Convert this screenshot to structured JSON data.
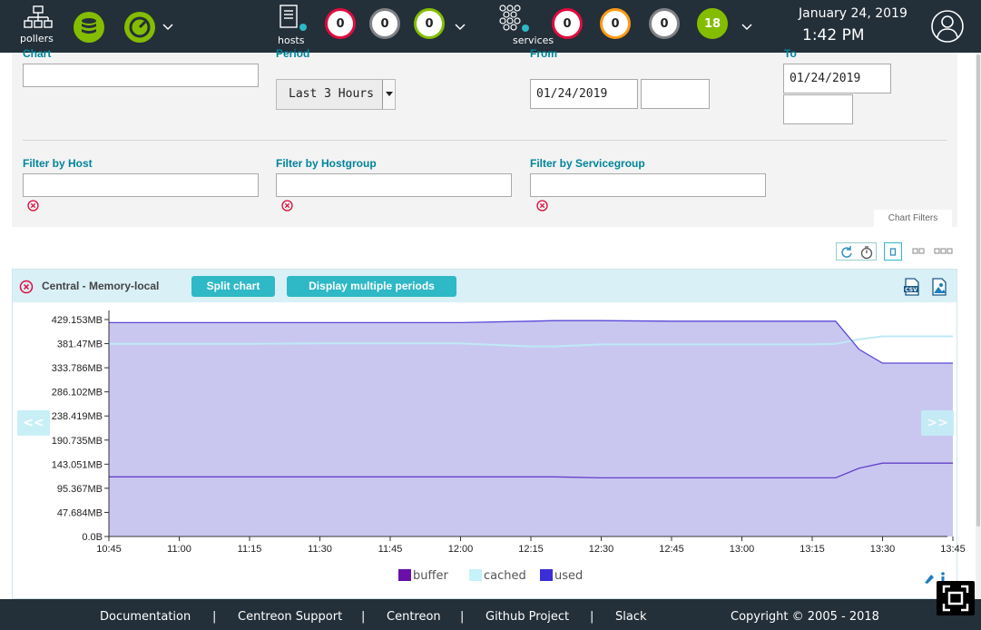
{
  "topbar": {
    "pollers_label": "pollers",
    "hosts_label": "hosts",
    "services_label": "services",
    "hosts_counts": [
      "0",
      "0",
      "0"
    ],
    "services_counts": [
      "0",
      "0",
      "0",
      "18"
    ],
    "date": "January 24, 2019",
    "time": "1:42 PM",
    "colors": {
      "critical": "#e00b3d",
      "unknown": "#818285",
      "ok": "#84bd00",
      "warning": "#ff9a13"
    }
  },
  "filters": {
    "chart_label": "Chart",
    "chart_value": "",
    "period_label": "Period",
    "period_value": "Last 3 Hours",
    "from_label": "From",
    "from_date": "01/24/2019",
    "from_time": "",
    "to_label": "To",
    "to_date": "01/24/2019",
    "to_time": "",
    "host_label": "Filter by Host",
    "host_value": "",
    "hostgroup_label": "Filter by Hostgroup",
    "hostgroup_value": "",
    "servicegroup_label": "Filter by Servicegroup",
    "servicegroup_value": "",
    "chart_filters_tab": "Chart Filters"
  },
  "chart_panel": {
    "title": "Central - Memory-local",
    "split_label": "Split chart",
    "multi_label": "Display multiple periods",
    "prev_label": "<<",
    "next_label": ">>"
  },
  "chart_data": {
    "type": "area",
    "x_ticks": [
      "10:45",
      "11:00",
      "11:15",
      "11:30",
      "11:45",
      "12:00",
      "12:15",
      "12:30",
      "12:45",
      "13:00",
      "13:15",
      "13:30",
      "13:45"
    ],
    "y_ticks": [
      "0.0B",
      "47.684MB",
      "95.367MB",
      "143.051MB",
      "190.735MB",
      "238.419MB",
      "286.102MB",
      "333.786MB",
      "381.47MB",
      "429.153MB"
    ],
    "ylim_mb": [
      0,
      429.153
    ],
    "series": [
      {
        "name": "used",
        "color": "#3a2fd6",
        "x": [
          "10:45",
          "11:00",
          "11:15",
          "11:30",
          "11:45",
          "12:00",
          "12:15",
          "12:20",
          "12:30",
          "12:45",
          "13:00",
          "13:15",
          "13:20",
          "13:25",
          "13:30",
          "13:35",
          "13:45"
        ],
        "values": [
          423,
          423,
          423,
          423,
          423,
          423,
          426,
          427,
          427,
          426,
          426,
          426,
          426,
          370,
          343,
          343,
          343
        ]
      },
      {
        "name": "cached",
        "color": "#c6f2f9",
        "x": [
          "10:45",
          "11:00",
          "11:15",
          "11:30",
          "11:45",
          "12:00",
          "12:15",
          "12:20",
          "12:30",
          "12:45",
          "13:00",
          "13:15",
          "13:20",
          "13:25",
          "13:30",
          "13:35",
          "13:45"
        ],
        "values": [
          381,
          381,
          381,
          382,
          382,
          382,
          376,
          376,
          380,
          380,
          380,
          380,
          381,
          390,
          396,
          396,
          396
        ]
      },
      {
        "name": "buffer",
        "color": "#6a0fa8",
        "x": [
          "10:45",
          "11:00",
          "11:15",
          "11:30",
          "11:45",
          "12:00",
          "12:15",
          "12:20",
          "12:30",
          "12:45",
          "13:00",
          "13:15",
          "13:20",
          "13:25",
          "13:30",
          "13:35",
          "13:45"
        ],
        "values": [
          118,
          118,
          118,
          118,
          118,
          118,
          118,
          118,
          116,
          116,
          116,
          116,
          116,
          135,
          145,
          145,
          145
        ]
      }
    ],
    "legend": [
      "buffer",
      "cached",
      "used"
    ],
    "legend_placement": "bottom"
  },
  "footer": {
    "links": [
      "Documentation",
      "Centreon Support",
      "Centreon",
      "Github Project",
      "Slack"
    ],
    "copyright": "Copyright © 2005 - 2018"
  }
}
